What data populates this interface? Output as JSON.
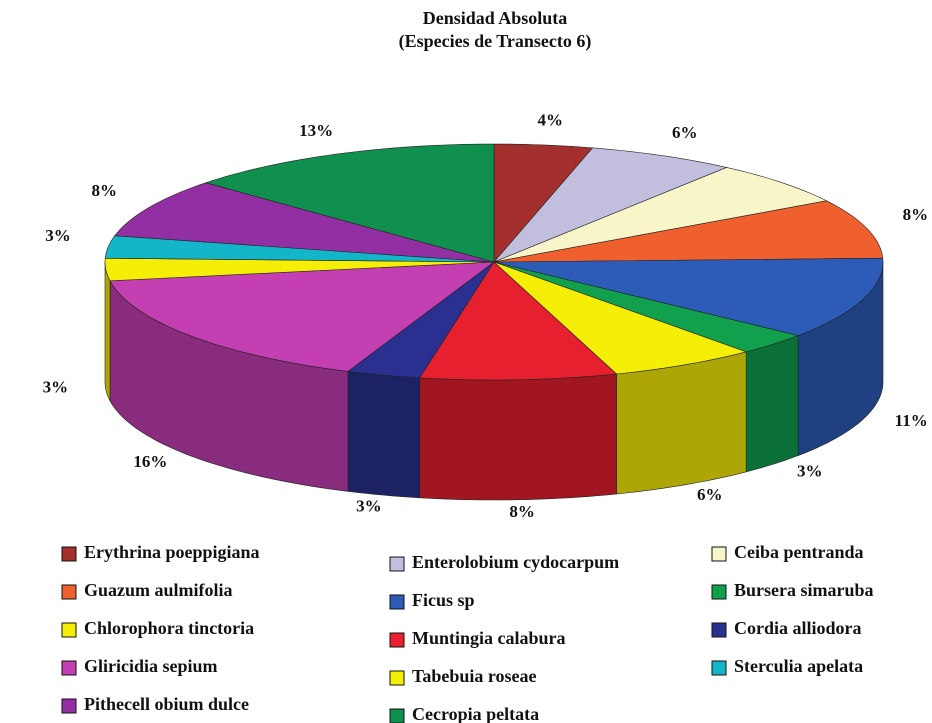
{
  "chart_data": {
    "type": "pie3d",
    "title": [
      "Densidad Absoluta",
      "(Especies de Transecto 6)"
    ],
    "categories": [
      "Erythrina poeppigiana",
      "Enterolobium cydocarpum",
      "Ceiba pentranda",
      "Guazum aulmifolia",
      "Ficus sp",
      "Bursera simaruba",
      "Chlorophora tinctoria",
      "Muntingia calabura",
      "Cordia alliodora",
      "Gliricidia sepium",
      "Tabebuia roseae",
      "Sterculia apelata",
      "Pithecell obium dulce",
      "Cecropia peltata"
    ],
    "values": [
      4,
      6,
      6,
      8,
      11,
      3,
      6,
      8,
      3,
      16,
      3,
      3,
      8,
      13
    ],
    "value_labels": [
      "4%",
      "6%",
      null,
      "8%",
      "11%",
      "3%",
      "6%",
      "8%",
      "3%",
      "16%",
      "3%",
      "3%",
      "8%",
      "13%"
    ],
    "colors": [
      "#a3302c",
      "#c2bedd",
      "#f8f5c8",
      "#f0602f",
      "#2c5cb8",
      "#10a04e",
      "#f5ef08",
      "#e6202e",
      "#2a3090",
      "#c33fb2",
      "#f5ef08",
      "#12b6c8",
      "#922fa2",
      "#10904e"
    ]
  }
}
